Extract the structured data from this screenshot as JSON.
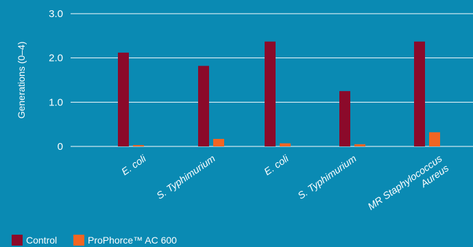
{
  "chart_data": {
    "type": "bar",
    "title": "",
    "xlabel": "",
    "ylabel": "Generations (0–4)",
    "ylim": [
      0,
      3.0
    ],
    "yticks": [
      {
        "value": 0,
        "label": "0"
      },
      {
        "value": 1.0,
        "label": "1.0"
      },
      {
        "value": 2.0,
        "label": "2.0"
      },
      {
        "value": 3.0,
        "label": "3.0"
      }
    ],
    "grid": true,
    "legend_position": "bottom-left",
    "categories": [
      [
        "E. coli"
      ],
      [
        "S. Typhimurium"
      ],
      [
        "E. coli"
      ],
      [
        "S. Typhimurium"
      ],
      [
        "MR Staphylococcus",
        "Aureus"
      ]
    ],
    "series": [
      {
        "name": "Control",
        "color": "#8b0a2a",
        "values": [
          2.12,
          1.82,
          2.37,
          1.25,
          2.37
        ]
      },
      {
        "name": "ProPhorce™ AC 600",
        "color": "#f26522",
        "values": [
          0.03,
          0.17,
          0.07,
          0.05,
          0.32
        ]
      }
    ]
  }
}
